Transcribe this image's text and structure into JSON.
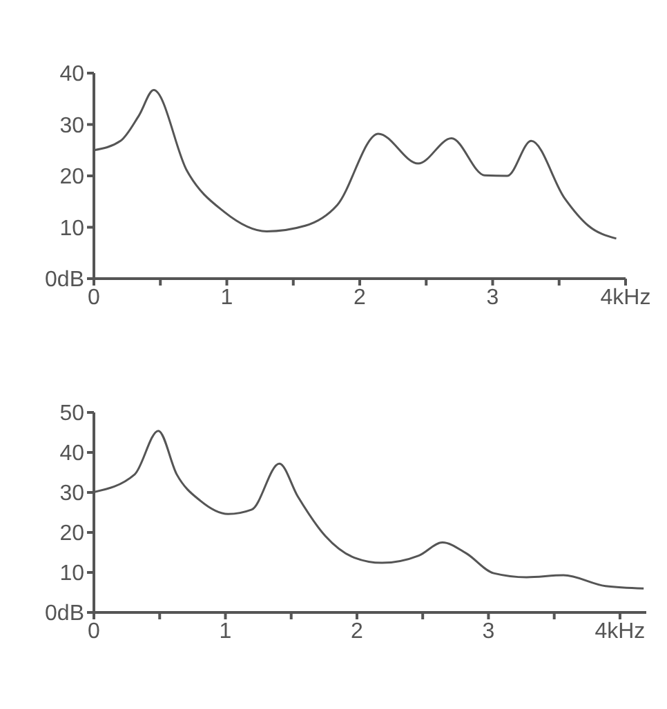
{
  "chart_data": [
    {
      "type": "line",
      "xlim": [
        0,
        4
      ],
      "ylim": [
        0,
        40
      ],
      "xticks": [
        0,
        {
          "value": 0.5,
          "label": null
        },
        1,
        {
          "value": 1.5,
          "label": null
        },
        2,
        {
          "value": 2.5,
          "label": null
        },
        3,
        {
          "value": 3.5,
          "label": null
        },
        {
          "value": 4,
          "label": "4kHz"
        }
      ],
      "yticks": [
        {
          "value": 0,
          "label": "0dB"
        },
        10,
        20,
        30,
        40
      ],
      "series": [
        {
          "color": "#555555",
          "x": [
            0,
            0.2,
            0.34,
            0.45,
            0.7,
            0.98,
            1.3,
            1.59,
            1.83,
            2.14,
            2.44,
            2.69,
            2.94,
            3.11,
            3.29,
            3.54,
            3.72,
            3.93
          ],
          "values": [
            25,
            26.8,
            31.8,
            36.7,
            21,
            13,
            9.2,
            10.3,
            14.3,
            28.2,
            22.4,
            27.3,
            20.1,
            20,
            26.8,
            15.7,
            10.3,
            7.8
          ]
        }
      ]
    },
    {
      "type": "line",
      "xlim": [
        0,
        4.2
      ],
      "ylim": [
        0,
        50
      ],
      "xticks": [
        0,
        {
          "value": 0.5,
          "label": null
        },
        1,
        {
          "value": 1.5,
          "label": null
        },
        2,
        {
          "value": 2.5,
          "label": null
        },
        3,
        {
          "value": 3.5,
          "label": null
        },
        {
          "value": 4,
          "label": "4kHz"
        }
      ],
      "yticks": [
        {
          "value": 0,
          "label": "0dB"
        },
        10,
        20,
        30,
        40,
        50
      ],
      "series": [
        {
          "color": "#555555",
          "x": [
            0,
            0.31,
            0.49,
            0.63,
            0.81,
            1.02,
            1.2,
            1.41,
            1.55,
            1.76,
            1.98,
            2.19,
            2.47,
            2.65,
            2.83,
            3.04,
            3.29,
            3.57,
            3.89,
            4.18
          ],
          "values": [
            30.1,
            34.5,
            45.4,
            34.5,
            27.9,
            24.6,
            25.7,
            37.2,
            29,
            19.1,
            13.7,
            12.4,
            14.2,
            17.5,
            14.8,
            9.8,
            8.8,
            9.3,
            6.6,
            6
          ]
        }
      ]
    }
  ]
}
